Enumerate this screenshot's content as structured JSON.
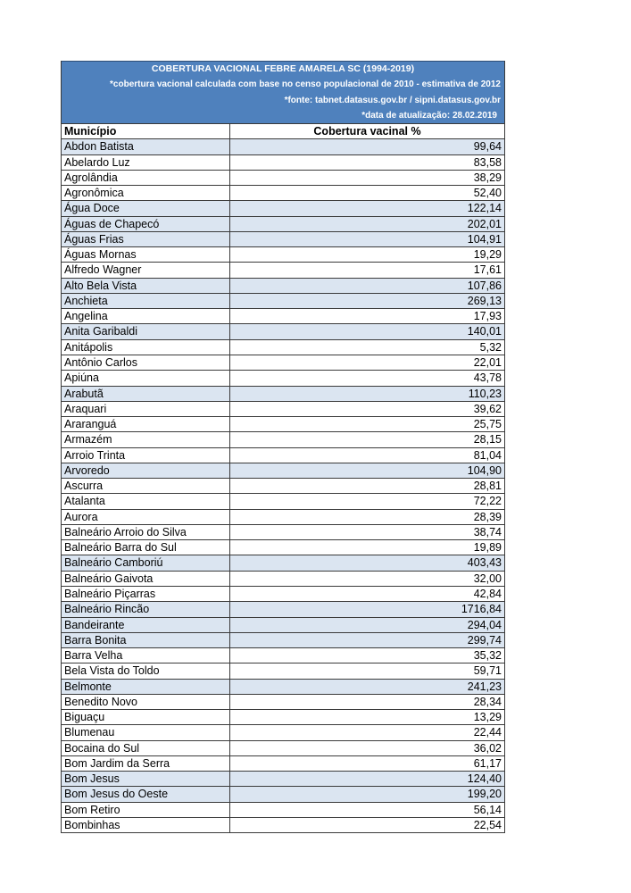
{
  "colors": {
    "header_bg": "#4f81bd",
    "highlight_bg": "#dbe5f1",
    "row_bg": "#ffffff"
  },
  "header": {
    "title": "COBERTURA VACIONAL FEBRE AMARELA SC (1994-2019)",
    "notes": [
      "*cobertura vacional calculada com base no censo populacional de 2010 - estimativa de 2012",
      "*fonte: tabnet.datasus.gov.br / sipni.datasus.gov.br",
      "*data de atualização: 28.02.2019"
    ]
  },
  "table": {
    "columns": [
      "Município",
      "Cobertura vacinal %"
    ],
    "rows": [
      {
        "municipio": "Abdon Batista",
        "cobertura": "99,64",
        "highlighted": true
      },
      {
        "municipio": "Abelardo Luz",
        "cobertura": "83,58",
        "highlighted": false
      },
      {
        "municipio": "Agrolândia",
        "cobertura": "38,29",
        "highlighted": false
      },
      {
        "municipio": "Agronômica",
        "cobertura": "52,40",
        "highlighted": false
      },
      {
        "municipio": "Água Doce",
        "cobertura": "122,14",
        "highlighted": true
      },
      {
        "municipio": "Águas de Chapecó",
        "cobertura": "202,01",
        "highlighted": true
      },
      {
        "municipio": "Águas Frias",
        "cobertura": "104,91",
        "highlighted": true
      },
      {
        "municipio": "Águas Mornas",
        "cobertura": "19,29",
        "highlighted": false
      },
      {
        "municipio": "Alfredo Wagner",
        "cobertura": "17,61",
        "highlighted": false
      },
      {
        "municipio": "Alto Bela Vista",
        "cobertura": "107,86",
        "highlighted": true
      },
      {
        "municipio": "Anchieta",
        "cobertura": "269,13",
        "highlighted": true
      },
      {
        "municipio": "Angelina",
        "cobertura": "17,93",
        "highlighted": false
      },
      {
        "municipio": "Anita Garibaldi",
        "cobertura": "140,01",
        "highlighted": true
      },
      {
        "municipio": "Anitápolis",
        "cobertura": "5,32",
        "highlighted": false
      },
      {
        "municipio": "Antônio Carlos",
        "cobertura": "22,01",
        "highlighted": false
      },
      {
        "municipio": "Apiúna",
        "cobertura": "43,78",
        "highlighted": false
      },
      {
        "municipio": "Arabutã",
        "cobertura": "110,23",
        "highlighted": true
      },
      {
        "municipio": "Araquari",
        "cobertura": "39,62",
        "highlighted": false
      },
      {
        "municipio": "Araranguá",
        "cobertura": "25,75",
        "highlighted": false
      },
      {
        "municipio": "Armazém",
        "cobertura": "28,15",
        "highlighted": false
      },
      {
        "municipio": "Arroio Trinta",
        "cobertura": "81,04",
        "highlighted": false
      },
      {
        "municipio": "Arvoredo",
        "cobertura": "104,90",
        "highlighted": true
      },
      {
        "municipio": "Ascurra",
        "cobertura": "28,81",
        "highlighted": false
      },
      {
        "municipio": "Atalanta",
        "cobertura": "72,22",
        "highlighted": false
      },
      {
        "municipio": "Aurora",
        "cobertura": "28,39",
        "highlighted": false
      },
      {
        "municipio": "Balneário Arroio do Silva",
        "cobertura": "38,74",
        "highlighted": false
      },
      {
        "municipio": "Balneário Barra do Sul",
        "cobertura": "19,89",
        "highlighted": false
      },
      {
        "municipio": "Balneário Camboriú",
        "cobertura": "403,43",
        "highlighted": true
      },
      {
        "municipio": "Balneário Gaivota",
        "cobertura": "32,00",
        "highlighted": false
      },
      {
        "municipio": "Balneário Piçarras",
        "cobertura": "42,84",
        "highlighted": false
      },
      {
        "municipio": "Balneário Rincão",
        "cobertura": "1716,84",
        "highlighted": true
      },
      {
        "municipio": "Bandeirante",
        "cobertura": "294,04",
        "highlighted": true
      },
      {
        "municipio": "Barra Bonita",
        "cobertura": "299,74",
        "highlighted": true
      },
      {
        "municipio": "Barra Velha",
        "cobertura": "35,32",
        "highlighted": false
      },
      {
        "municipio": "Bela Vista do Toldo",
        "cobertura": "59,71",
        "highlighted": false
      },
      {
        "municipio": "Belmonte",
        "cobertura": "241,23",
        "highlighted": true
      },
      {
        "municipio": "Benedito Novo",
        "cobertura": "28,34",
        "highlighted": false
      },
      {
        "municipio": "Biguaçu",
        "cobertura": "13,29",
        "highlighted": false
      },
      {
        "municipio": "Blumenau",
        "cobertura": "22,44",
        "highlighted": false
      },
      {
        "municipio": "Bocaina do Sul",
        "cobertura": "36,02",
        "highlighted": false
      },
      {
        "municipio": "Bom Jardim da Serra",
        "cobertura": "61,17",
        "highlighted": false
      },
      {
        "municipio": "Bom Jesus",
        "cobertura": "124,40",
        "highlighted": true
      },
      {
        "municipio": "Bom Jesus do Oeste",
        "cobertura": "199,20",
        "highlighted": true
      },
      {
        "municipio": "Bom Retiro",
        "cobertura": "56,14",
        "highlighted": false
      },
      {
        "municipio": "Bombinhas",
        "cobertura": "22,54",
        "highlighted": false
      }
    ]
  }
}
